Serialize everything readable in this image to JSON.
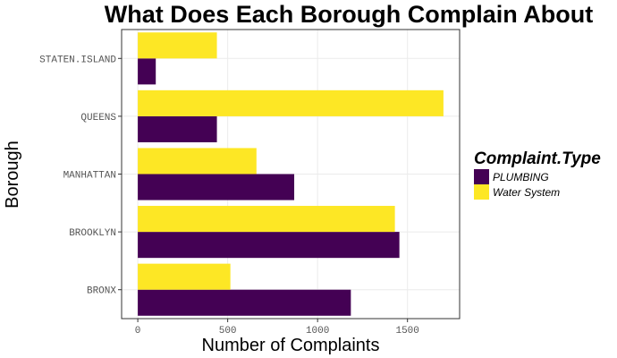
{
  "chart_data": {
    "type": "bar",
    "orientation": "horizontal",
    "title": "What Does Each Borough Complain About",
    "xlabel": "Number of Complaints",
    "ylabel": "Borough",
    "categories": [
      "BRONX",
      "BROOKLYN",
      "MANHATTAN",
      "QUEENS",
      "STATEN.ISLAND"
    ],
    "series": [
      {
        "name": "PLUMBING",
        "color": "#440154",
        "values": [
          1185,
          1455,
          870,
          440,
          100
        ]
      },
      {
        "name": "Water System",
        "color": "#FDE725",
        "values": [
          515,
          1430,
          660,
          1700,
          440
        ]
      }
    ],
    "xlim": [
      -90,
      1790
    ],
    "xticks": [
      0,
      500,
      1000,
      1500
    ],
    "legend": {
      "title": "Complaint.Type",
      "position": "right"
    },
    "grid": true
  }
}
